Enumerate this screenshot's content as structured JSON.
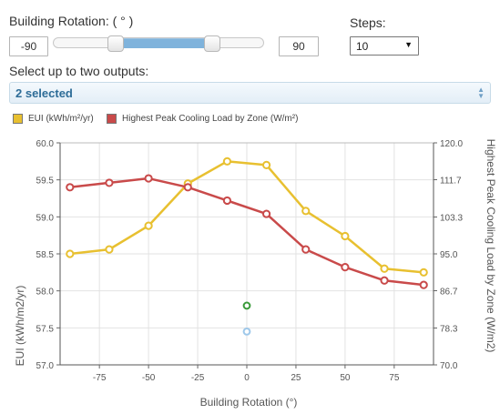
{
  "controls": {
    "rotation_label": "Building Rotation: ( ° )",
    "min_value": "-90",
    "max_value": "90",
    "range_low": -30,
    "range_high": 30,
    "steps_label": "Steps:",
    "steps_value": "10",
    "outputs_label": "Select up to two outputs:",
    "outputs_selected": "2 selected",
    "outputs_arrows_icon": "up-down-arrows-icon",
    "dropdown_icon": "triangle-down-icon"
  },
  "legend": [
    {
      "label": "EUI (kWh/m²/yr)",
      "color": "#e8c030"
    },
    {
      "label": "Highest Peak Cooling Load by Zone (W/m²)",
      "color": "#c94a4a"
    }
  ],
  "chart_data": {
    "type": "line",
    "xlabel": "Building Rotation (°)",
    "ylabel_left": "EUI (kWh/m2/yr)",
    "ylabel_right": "Highest Peak Cooling Load by Zone (W/m2)",
    "xlim": [
      -95,
      95
    ],
    "ylim_left": [
      57.0,
      60.0
    ],
    "ylim_right": [
      70.0,
      120.0
    ],
    "x_ticks": [
      -75,
      -50,
      -25,
      0,
      25,
      50,
      75
    ],
    "x_tick_labels": [
      "-75",
      "-50",
      "-25",
      "0",
      "25",
      "50",
      "75"
    ],
    "y_left_ticks": [
      57.0,
      57.5,
      58.0,
      58.5,
      59.0,
      59.5,
      60.0
    ],
    "y_left_tick_labels": [
      "57.0",
      "57.5",
      "58.0",
      "58.5",
      "59.0",
      "59.5",
      "60.0"
    ],
    "y_right_ticks": [
      70.0,
      78.3,
      86.7,
      95.0,
      103.3,
      111.7,
      120.0
    ],
    "y_right_tick_labels": [
      "70.0",
      "78.3",
      "86.7",
      "95.0",
      "103.3",
      "111.7",
      "120.0"
    ],
    "grid": true,
    "series": [
      {
        "name": "EUI (kWh/m²/yr)",
        "axis": "left",
        "color": "#e8c030",
        "x": [
          -90,
          -70,
          -50,
          -30,
          -10,
          10,
          30,
          50,
          70,
          90
        ],
        "y": [
          58.5,
          58.56,
          58.88,
          59.45,
          59.75,
          59.7,
          59.08,
          58.74,
          58.3,
          58.25
        ]
      },
      {
        "name": "Highest Peak Cooling Load by Zone (W/m²)",
        "axis": "right",
        "color": "#c94a4a",
        "x": [
          -90,
          -70,
          -50,
          -30,
          -10,
          10,
          30,
          50,
          70,
          90
        ],
        "y": [
          110.0,
          111.0,
          112.0,
          110.0,
          107.0,
          104.0,
          96.0,
          92.0,
          89.0,
          88.0
        ]
      }
    ],
    "extra_points": [
      {
        "x": 0,
        "y": 57.8,
        "axis": "left",
        "color": "#3a9a3a"
      },
      {
        "x": 0,
        "y": 57.45,
        "axis": "left",
        "color": "#9ec8ea"
      }
    ]
  }
}
